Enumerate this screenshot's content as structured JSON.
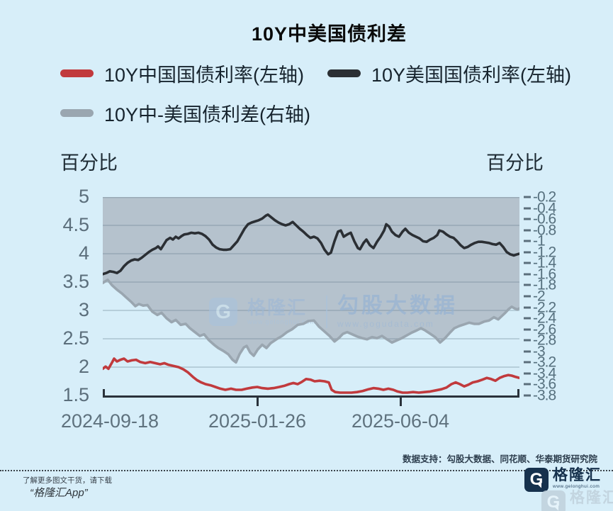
{
  "title": "10Y中美国债利差",
  "legend": [
    {
      "label": "10Y中国国债利率(左轴)",
      "color": "#c13a3d"
    },
    {
      "label": "10Y美国国债利率(左轴)",
      "color": "#2b2f34"
    },
    {
      "label": "10Y中-美国债利差(右轴)",
      "color": "#9aa6b0"
    }
  ],
  "axis_caption_left": "百分比",
  "axis_caption_right": "百分比",
  "watermark_chart": {
    "logo_letter": "G",
    "brand": "格隆汇",
    "brand_url": "www.gelonghui.com",
    "partner": "勾股大数据",
    "partner_url": "www.gogudata.com"
  },
  "footer": {
    "source_note": "数据支持：勾股大数据、同花顺、华泰期货研究院",
    "promo_line1": "了解更多图文干货，请下载",
    "promo_line2": "“格隆汇App”",
    "brand": {
      "letter": "G",
      "name": "格隆汇",
      "url": "www.gelonghui.com"
    }
  },
  "chart_data": {
    "type": "line",
    "title": "10Y中美国债利差",
    "x_axis": {
      "t_max": 588,
      "ticks": [
        {
          "t": 10,
          "label": "2024-09-18"
        },
        {
          "t": 218,
          "label": "2025-01-26"
        },
        {
          "t": 420,
          "label": "2025-06-04"
        }
      ]
    },
    "left_axis": {
      "caption": "百分比",
      "min": 1.5,
      "max": 5.0,
      "step": 0.5
    },
    "right_axis": {
      "caption": "百分比",
      "top": -0.2,
      "bottom": -3.8,
      "step": 0.2
    },
    "grid": {
      "color": "rgba(108,130,146,0.4)",
      "area_fill": "#b5c2cd"
    },
    "series": [
      {
        "name": "10Y中-美国债利差(右轴)",
        "axis": "right",
        "color": "#9aa6b0",
        "area": true,
        "points": [
          [
            0,
            -1.76
          ],
          [
            7,
            -1.7
          ],
          [
            13,
            -1.8
          ],
          [
            20,
            -1.88
          ],
          [
            27,
            -1.95
          ],
          [
            33,
            -2.02
          ],
          [
            40,
            -2.1
          ],
          [
            46,
            -2.18
          ],
          [
            51,
            -2.14
          ],
          [
            57,
            -2.17
          ],
          [
            63,
            -2.16
          ],
          [
            70,
            -2.28
          ],
          [
            77,
            -2.34
          ],
          [
            83,
            -2.3
          ],
          [
            90,
            -2.4
          ],
          [
            97,
            -2.47
          ],
          [
            103,
            -2.43
          ],
          [
            110,
            -2.52
          ],
          [
            117,
            -2.5
          ],
          [
            123,
            -2.58
          ],
          [
            130,
            -2.65
          ],
          [
            137,
            -2.72
          ],
          [
            143,
            -2.69
          ],
          [
            150,
            -2.8
          ],
          [
            157,
            -2.88
          ],
          [
            163,
            -2.94
          ],
          [
            170,
            -2.99
          ],
          [
            177,
            -3.05
          ],
          [
            183,
            -3.15
          ],
          [
            188,
            -3.2
          ],
          [
            193,
            -3.05
          ],
          [
            199,
            -2.93
          ],
          [
            203,
            -2.9
          ],
          [
            208,
            -3.02
          ],
          [
            213,
            -3.08
          ],
          [
            219,
            -2.96
          ],
          [
            225,
            -2.88
          ],
          [
            231,
            -2.94
          ],
          [
            237,
            -2.85
          ],
          [
            245,
            -2.78
          ],
          [
            253,
            -2.72
          ],
          [
            260,
            -2.65
          ],
          [
            267,
            -2.6
          ],
          [
            275,
            -2.52
          ],
          [
            283,
            -2.5
          ],
          [
            290,
            -2.45
          ],
          [
            298,
            -2.44
          ],
          [
            305,
            -2.55
          ],
          [
            313,
            -2.64
          ],
          [
            320,
            -2.72
          ],
          [
            327,
            -2.82
          ],
          [
            333,
            -2.76
          ],
          [
            339,
            -2.68
          ],
          [
            345,
            -2.65
          ],
          [
            352,
            -2.69
          ],
          [
            359,
            -2.73
          ],
          [
            366,
            -2.76
          ],
          [
            373,
            -2.78
          ],
          [
            380,
            -2.74
          ],
          [
            387,
            -2.76
          ],
          [
            394,
            -2.72
          ],
          [
            401,
            -2.78
          ],
          [
            408,
            -2.84
          ],
          [
            415,
            -2.8
          ],
          [
            422,
            -2.76
          ],
          [
            429,
            -2.71
          ],
          [
            436,
            -2.66
          ],
          [
            443,
            -2.62
          ],
          [
            449,
            -2.58
          ],
          [
            455,
            -2.62
          ],
          [
            462,
            -2.68
          ],
          [
            469,
            -2.74
          ],
          [
            476,
            -2.84
          ],
          [
            483,
            -2.76
          ],
          [
            490,
            -2.66
          ],
          [
            496,
            -2.58
          ],
          [
            503,
            -2.54
          ],
          [
            510,
            -2.51
          ],
          [
            517,
            -2.48
          ],
          [
            524,
            -2.5
          ],
          [
            531,
            -2.5
          ],
          [
            538,
            -2.46
          ],
          [
            545,
            -2.44
          ],
          [
            552,
            -2.38
          ],
          [
            558,
            -2.42
          ],
          [
            563,
            -2.36
          ],
          [
            568,
            -2.3
          ],
          [
            573,
            -2.23
          ],
          [
            577,
            -2.19
          ],
          [
            581,
            -2.22
          ],
          [
            585,
            -2.24
          ],
          [
            588,
            -2.22
          ]
        ]
      },
      {
        "name": "10Y美国国债利率(左轴)",
        "axis": "left",
        "color": "#2b2f34",
        "points": [
          [
            0,
            3.64
          ],
          [
            5,
            3.66
          ],
          [
            10,
            3.69
          ],
          [
            15,
            3.68
          ],
          [
            20,
            3.66
          ],
          [
            25,
            3.7
          ],
          [
            30,
            3.78
          ],
          [
            35,
            3.84
          ],
          [
            40,
            3.88
          ],
          [
            45,
            3.9
          ],
          [
            50,
            3.89
          ],
          [
            55,
            3.93
          ],
          [
            60,
            3.98
          ],
          [
            65,
            4.03
          ],
          [
            70,
            4.07
          ],
          [
            75,
            4.1
          ],
          [
            78,
            4.13
          ],
          [
            82,
            4.08
          ],
          [
            86,
            4.16
          ],
          [
            90,
            4.24
          ],
          [
            95,
            4.28
          ],
          [
            99,
            4.25
          ],
          [
            103,
            4.3
          ],
          [
            107,
            4.27
          ],
          [
            111,
            4.31
          ],
          [
            115,
            4.34
          ],
          [
            120,
            4.35
          ],
          [
            125,
            4.37
          ],
          [
            130,
            4.36
          ],
          [
            135,
            4.37
          ],
          [
            140,
            4.35
          ],
          [
            145,
            4.31
          ],
          [
            150,
            4.25
          ],
          [
            155,
            4.16
          ],
          [
            160,
            4.11
          ],
          [
            165,
            4.08
          ],
          [
            170,
            4.07
          ],
          [
            175,
            4.07
          ],
          [
            180,
            4.08
          ],
          [
            185,
            4.15
          ],
          [
            190,
            4.22
          ],
          [
            195,
            4.33
          ],
          [
            200,
            4.44
          ],
          [
            205,
            4.52
          ],
          [
            210,
            4.55
          ],
          [
            215,
            4.57
          ],
          [
            220,
            4.59
          ],
          [
            225,
            4.62
          ],
          [
            230,
            4.67
          ],
          [
            233,
            4.69
          ],
          [
            238,
            4.64
          ],
          [
            243,
            4.59
          ],
          [
            248,
            4.55
          ],
          [
            253,
            4.52
          ],
          [
            258,
            4.5
          ],
          [
            263,
            4.52
          ],
          [
            268,
            4.56
          ],
          [
            273,
            4.5
          ],
          [
            278,
            4.44
          ],
          [
            283,
            4.39
          ],
          [
            288,
            4.33
          ],
          [
            293,
            4.28
          ],
          [
            298,
            4.3
          ],
          [
            303,
            4.27
          ],
          [
            308,
            4.19
          ],
          [
            313,
            4.07
          ],
          [
            318,
            3.99
          ],
          [
            322,
            4.02
          ],
          [
            327,
            4.22
          ],
          [
            332,
            4.39
          ],
          [
            336,
            4.41
          ],
          [
            340,
            4.3
          ],
          [
            345,
            4.34
          ],
          [
            350,
            4.37
          ],
          [
            355,
            4.22
          ],
          [
            360,
            4.1
          ],
          [
            363,
            4.08
          ],
          [
            368,
            4.19
          ],
          [
            372,
            4.25
          ],
          [
            377,
            4.15
          ],
          [
            382,
            4.1
          ],
          [
            387,
            4.21
          ],
          [
            392,
            4.3
          ],
          [
            397,
            4.41
          ],
          [
            400,
            4.52
          ],
          [
            404,
            4.48
          ],
          [
            408,
            4.39
          ],
          [
            413,
            4.33
          ],
          [
            418,
            4.3
          ],
          [
            423,
            4.39
          ],
          [
            427,
            4.44
          ],
          [
            432,
            4.37
          ],
          [
            437,
            4.33
          ],
          [
            442,
            4.3
          ],
          [
            447,
            4.27
          ],
          [
            452,
            4.22
          ],
          [
            457,
            4.21
          ],
          [
            462,
            4.25
          ],
          [
            467,
            4.28
          ],
          [
            472,
            4.33
          ],
          [
            475,
            4.41
          ],
          [
            480,
            4.39
          ],
          [
            485,
            4.34
          ],
          [
            490,
            4.3
          ],
          [
            495,
            4.28
          ],
          [
            500,
            4.22
          ],
          [
            505,
            4.15
          ],
          [
            510,
            4.1
          ],
          [
            515,
            4.12
          ],
          [
            520,
            4.16
          ],
          [
            525,
            4.19
          ],
          [
            530,
            4.21
          ],
          [
            535,
            4.21
          ],
          [
            540,
            4.2
          ],
          [
            545,
            4.19
          ],
          [
            550,
            4.17
          ],
          [
            555,
            4.16
          ],
          [
            560,
            4.19
          ],
          [
            565,
            4.12
          ],
          [
            570,
            4.03
          ],
          [
            575,
            3.99
          ],
          [
            580,
            3.97
          ],
          [
            585,
            3.99
          ],
          [
            588,
            4.0
          ]
        ]
      },
      {
        "name": "10Y中国国债利率(左轴)",
        "axis": "left",
        "color": "#c13a3d",
        "points": [
          [
            0,
            1.97
          ],
          [
            4,
            2.01
          ],
          [
            8,
            1.97
          ],
          [
            13,
            2.08
          ],
          [
            16,
            2.15
          ],
          [
            20,
            2.1
          ],
          [
            25,
            2.13
          ],
          [
            30,
            2.15
          ],
          [
            35,
            2.1
          ],
          [
            41,
            2.12
          ],
          [
            47,
            2.13
          ],
          [
            53,
            2.09
          ],
          [
            60,
            2.07
          ],
          [
            67,
            2.09
          ],
          [
            74,
            2.07
          ],
          [
            81,
            2.05
          ],
          [
            87,
            2.07
          ],
          [
            93,
            2.04
          ],
          [
            100,
            2.02
          ],
          [
            107,
            2.0
          ],
          [
            114,
            1.96
          ],
          [
            120,
            1.91
          ],
          [
            127,
            1.83
          ],
          [
            133,
            1.77
          ],
          [
            139,
            1.73
          ],
          [
            145,
            1.7
          ],
          [
            152,
            1.68
          ],
          [
            159,
            1.65
          ],
          [
            166,
            1.62
          ],
          [
            173,
            1.6
          ],
          [
            181,
            1.62
          ],
          [
            188,
            1.6
          ],
          [
            196,
            1.6
          ],
          [
            203,
            1.62
          ],
          [
            211,
            1.64
          ],
          [
            218,
            1.65
          ],
          [
            225,
            1.63
          ],
          [
            233,
            1.62
          ],
          [
            241,
            1.63
          ],
          [
            249,
            1.65
          ],
          [
            256,
            1.67
          ],
          [
            263,
            1.7
          ],
          [
            269,
            1.72
          ],
          [
            275,
            1.7
          ],
          [
            281,
            1.74
          ],
          [
            287,
            1.79
          ],
          [
            293,
            1.78
          ],
          [
            299,
            1.75
          ],
          [
            306,
            1.76
          ],
          [
            313,
            1.75
          ],
          [
            319,
            1.73
          ],
          [
            323,
            1.6
          ],
          [
            328,
            1.56
          ],
          [
            335,
            1.55
          ],
          [
            343,
            1.55
          ],
          [
            351,
            1.55
          ],
          [
            359,
            1.56
          ],
          [
            367,
            1.58
          ],
          [
            375,
            1.61
          ],
          [
            382,
            1.63
          ],
          [
            389,
            1.62
          ],
          [
            396,
            1.6
          ],
          [
            403,
            1.62
          ],
          [
            410,
            1.6
          ],
          [
            416,
            1.57
          ],
          [
            423,
            1.55
          ],
          [
            430,
            1.55
          ],
          [
            438,
            1.56
          ],
          [
            446,
            1.55
          ],
          [
            454,
            1.56
          ],
          [
            462,
            1.57
          ],
          [
            470,
            1.59
          ],
          [
            478,
            1.61
          ],
          [
            485,
            1.64
          ],
          [
            492,
            1.7
          ],
          [
            498,
            1.73
          ],
          [
            504,
            1.7
          ],
          [
            510,
            1.66
          ],
          [
            516,
            1.69
          ],
          [
            522,
            1.73
          ],
          [
            529,
            1.75
          ],
          [
            536,
            1.78
          ],
          [
            542,
            1.81
          ],
          [
            548,
            1.79
          ],
          [
            554,
            1.76
          ],
          [
            560,
            1.81
          ],
          [
            566,
            1.84
          ],
          [
            572,
            1.86
          ],
          [
            577,
            1.85
          ],
          [
            582,
            1.83
          ],
          [
            588,
            1.81
          ]
        ]
      }
    ]
  }
}
